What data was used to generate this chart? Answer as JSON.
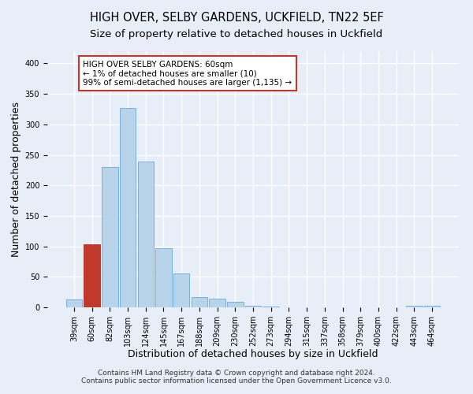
{
  "title": "HIGH OVER, SELBY GARDENS, UCKFIELD, TN22 5EF",
  "subtitle": "Size of property relative to detached houses in Uckfield",
  "xlabel": "Distribution of detached houses by size in Uckfield",
  "ylabel": "Number of detached properties",
  "footer_line1": "Contains HM Land Registry data © Crown copyright and database right 2024.",
  "footer_line2": "Contains public sector information licensed under the Open Government Licence v3.0.",
  "bin_labels": [
    "39sqm",
    "60sqm",
    "82sqm",
    "103sqm",
    "124sqm",
    "145sqm",
    "167sqm",
    "188sqm",
    "209sqm",
    "230sqm",
    "252sqm",
    "273sqm",
    "294sqm",
    "315sqm",
    "337sqm",
    "358sqm",
    "379sqm",
    "400sqm",
    "422sqm",
    "443sqm",
    "464sqm"
  ],
  "bar_heights": [
    13,
    103,
    230,
    327,
    239,
    97,
    55,
    17,
    14,
    9,
    2,
    1,
    0,
    0,
    0,
    0,
    0,
    0,
    0,
    2,
    2
  ],
  "highlight_bar_index": 1,
  "highlight_color": "#c0392b",
  "normal_bar_color": "#b8d4ea",
  "bar_edge_color": "#7aafe0",
  "annotation_title": "HIGH OVER SELBY GARDENS: 60sqm",
  "annotation_line2": "← 1% of detached houses are smaller (10)",
  "annotation_line3": "99% of semi-detached houses are larger (1,135) →",
  "annotation_box_color": "#ffffff",
  "annotation_box_edge": "#c0392b",
  "ylim": [
    0,
    420
  ],
  "yticks": [
    0,
    50,
    100,
    150,
    200,
    250,
    300,
    350,
    400
  ],
  "background_color": "#e8eef8",
  "plot_background": "#e8eef8",
  "grid_color": "#ffffff",
  "title_fontsize": 10.5,
  "subtitle_fontsize": 9.5,
  "axis_label_fontsize": 9,
  "tick_fontsize": 7,
  "footer_fontsize": 6.5
}
